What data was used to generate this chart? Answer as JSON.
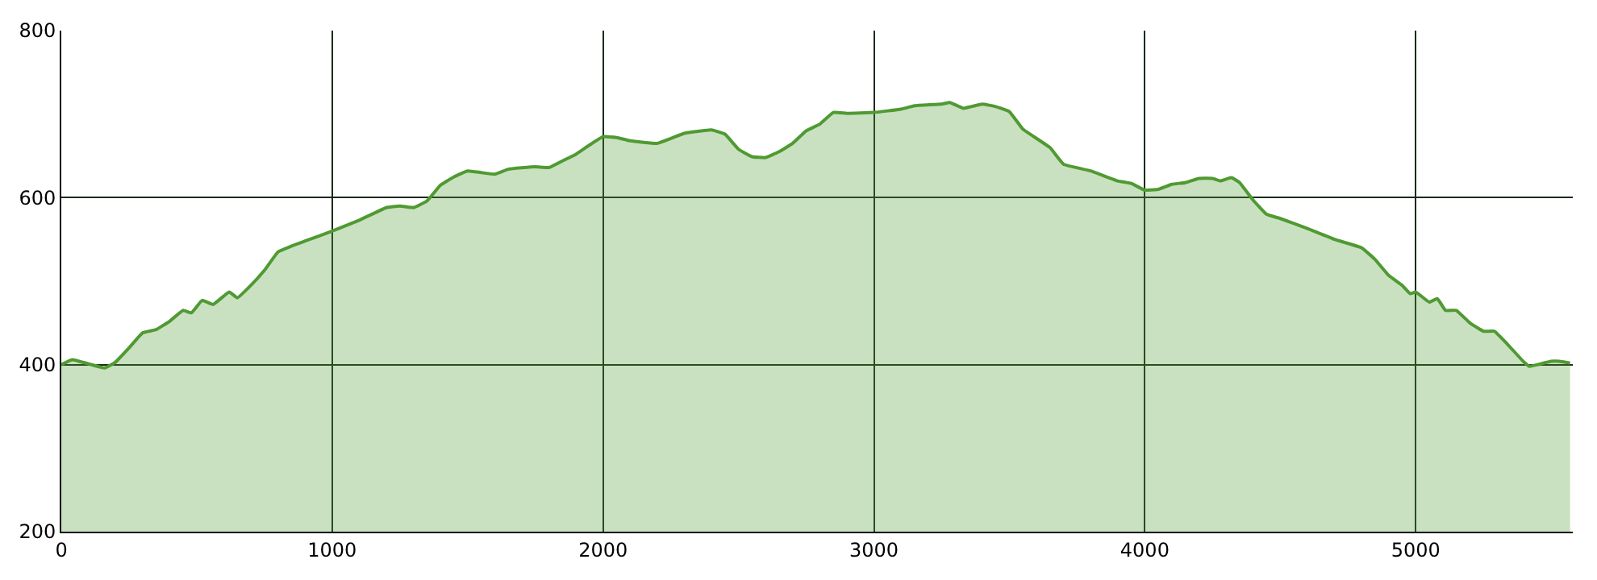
{
  "chart_data": {
    "type": "area",
    "x": [
      0,
      40,
      100,
      160,
      200,
      250,
      300,
      350,
      400,
      450,
      480,
      520,
      560,
      620,
      650,
      700,
      750,
      800,
      850,
      900,
      1000,
      1100,
      1200,
      1250,
      1300,
      1350,
      1400,
      1450,
      1500,
      1550,
      1600,
      1650,
      1750,
      1800,
      1850,
      1900,
      1950,
      2000,
      2050,
      2100,
      2200,
      2300,
      2400,
      2450,
      2500,
      2550,
      2600,
      2650,
      2700,
      2750,
      2800,
      2850,
      2900,
      3000,
      3100,
      3150,
      3250,
      3280,
      3330,
      3400,
      3450,
      3500,
      3550,
      3650,
      3700,
      3800,
      3900,
      3950,
      4000,
      4050,
      4100,
      4150,
      4200,
      4250,
      4280,
      4320,
      4350,
      4400,
      4450,
      4500,
      4600,
      4700,
      4800,
      4850,
      4900,
      4950,
      4980,
      5000,
      5050,
      5080,
      5110,
      5150,
      5200,
      5250,
      5290,
      5340,
      5400,
      5420,
      5450,
      5500,
      5530,
      5570
    ],
    "series": [
      {
        "color": "#4f9a32",
        "values": [
          400,
          406,
          401,
          396,
          403,
          420,
          438,
          442,
          452,
          465,
          462,
          477,
          472,
          487,
          480,
          495,
          513,
          535,
          542,
          548,
          560,
          573,
          588,
          590,
          588,
          596,
          615,
          625,
          632,
          630,
          628,
          634,
          637,
          636,
          644,
          652,
          663,
          673,
          672,
          668,
          665,
          677,
          681,
          676,
          658,
          649,
          648,
          655,
          665,
          680,
          688,
          702,
          701,
          702,
          706,
          710,
          712,
          714,
          707,
          712,
          709,
          703,
          682,
          660,
          640,
          632,
          620,
          617,
          609,
          610,
          616,
          618,
          623,
          623,
          620,
          624,
          618,
          597,
          580,
          575,
          563,
          550,
          540,
          526,
          507,
          495,
          485,
          487,
          475,
          479,
          465,
          465,
          450,
          440,
          440,
          424,
          403,
          398,
          400,
          404,
          404,
          402
        ]
      }
    ],
    "xlim": [
      0,
      5580
    ],
    "xticks": [
      0,
      1000,
      2000,
      3000,
      4000,
      5000
    ],
    "ylim": [
      200,
      800
    ],
    "yticks": [
      200,
      400,
      600,
      800
    ],
    "grid": true,
    "legend": false
  }
}
